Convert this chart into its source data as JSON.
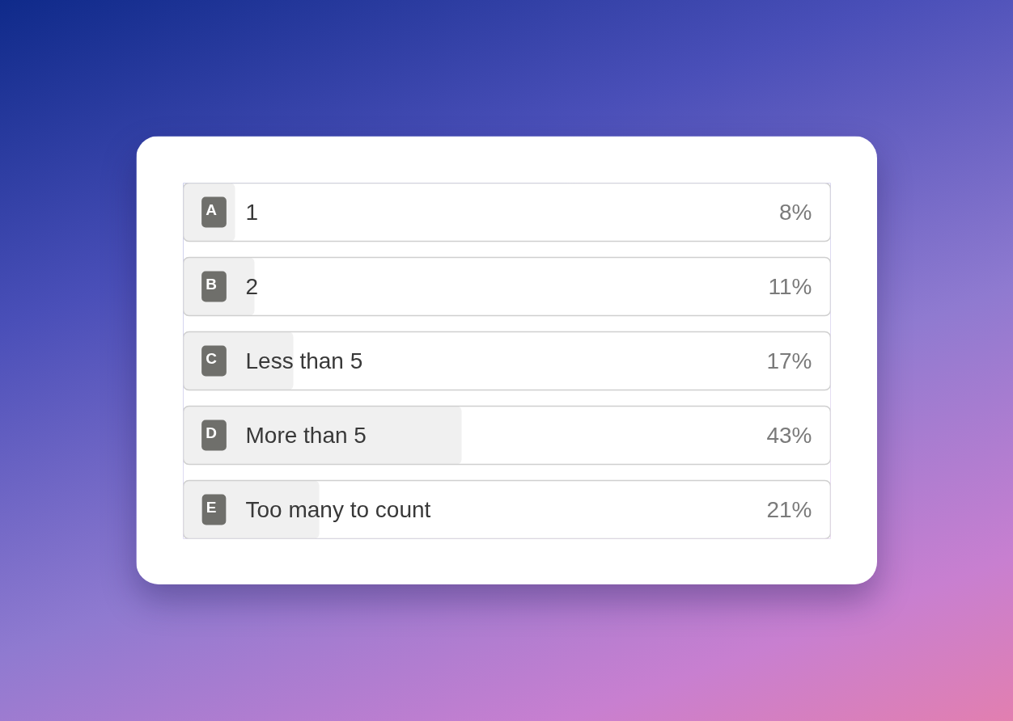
{
  "chart_data": {
    "type": "bar",
    "orientation": "horizontal",
    "categories": [
      "1",
      "2",
      "Less than 5",
      "More than 5",
      "Too many to count"
    ],
    "values": [
      8,
      11,
      17,
      43,
      21
    ],
    "value_labels": [
      "8%",
      "11%",
      "17%",
      "43%",
      "21%"
    ],
    "color": "#f0f0f0",
    "xlim": [
      0,
      100
    ],
    "tick_labels": false,
    "annotations": [
      "A",
      "B",
      "C",
      "D",
      "E"
    ]
  }
}
